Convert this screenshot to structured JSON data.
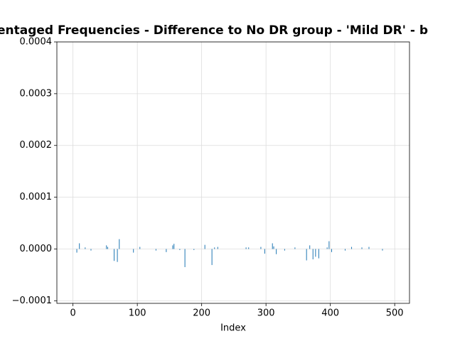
{
  "chart_data": {
    "type": "bar",
    "title": "entaged Frequencies - Difference to No DR group - 'Mild DR' -  b",
    "xlabel": "Index",
    "color": "#1f77b4",
    "grid": true,
    "xlim": [
      -25,
      523
    ],
    "ylim": [
      -0.000105,
      0.0004
    ],
    "xticks": [
      0,
      100,
      200,
      300,
      400,
      500
    ],
    "yticks": [
      {
        "value": -0.0001,
        "label": "−0.0001"
      },
      {
        "value": 0,
        "label": "0.0000"
      },
      {
        "value": 0.0001,
        "label": "0.0001"
      },
      {
        "value": 0.0002,
        "label": "0.0002"
      },
      {
        "value": 0.0003,
        "label": "0.0003"
      },
      {
        "value": 0.0004,
        "label": "0.0004"
      }
    ],
    "x": [
      6,
      10,
      19,
      28,
      52,
      54,
      64,
      69,
      72,
      94,
      104,
      129,
      145,
      155,
      157,
      166,
      174,
      188,
      205,
      216,
      220,
      225,
      269,
      273,
      292,
      298,
      310,
      312,
      316,
      329,
      345,
      363,
      368,
      373,
      377,
      382,
      395,
      398,
      402,
      423,
      433,
      449,
      460,
      481
    ],
    "values": [
      -7e-06,
      1.1e-05,
      3e-06,
      -3e-06,
      7e-06,
      4e-06,
      -2.3e-05,
      -2.5e-05,
      1.9e-05,
      -7e-06,
      4e-06,
      -3e-06,
      -6e-06,
      7e-06,
      1e-05,
      -2e-06,
      -3.5e-05,
      -2e-06,
      8e-06,
      -3.1e-05,
      3e-06,
      4e-06,
      3e-06,
      3e-06,
      4e-06,
      -9e-06,
      1.1e-05,
      5e-06,
      -1e-05,
      -3e-06,
      3e-06,
      -2.2e-05,
      7e-06,
      -2e-05,
      -1.5e-05,
      -1.8e-05,
      3e-06,
      1.5e-05,
      -6e-06,
      -3e-06,
      4e-06,
      3e-06,
      4e-06,
      -3e-06
    ]
  }
}
